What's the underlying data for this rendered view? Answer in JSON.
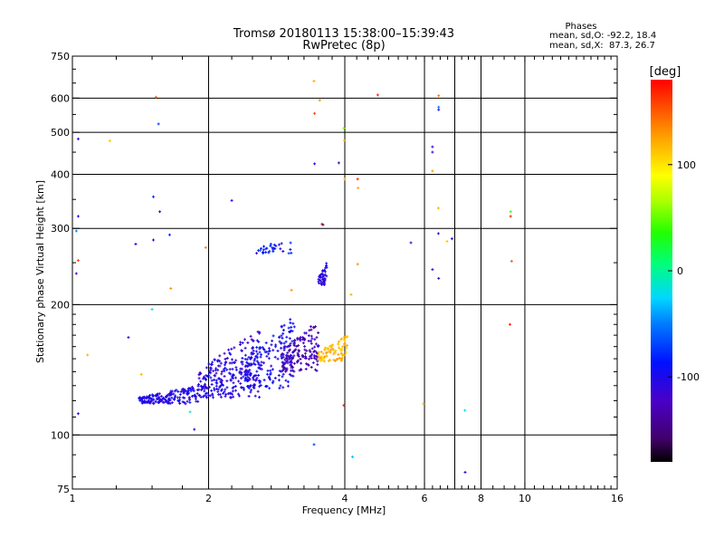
{
  "chart_data": {
    "type": "scatter",
    "title": "Tromsø 20180113 15:38:00–15:39:43",
    "subtitle": "RwPretec (8p)",
    "xlabel": "Frequency [MHz]",
    "ylabel": "Stationary phase Virtual Height [km]",
    "x_scale": "log2",
    "y_scale": "log",
    "xlim": [
      1,
      16
    ],
    "ylim": [
      75,
      750
    ],
    "x_ticks": [
      1,
      2,
      4,
      6,
      8,
      10,
      16
    ],
    "x_tick_labels": [
      "1",
      "2",
      "4",
      "6",
      "8",
      "10",
      "16"
    ],
    "x_gridlines": [
      2,
      4,
      6,
      7,
      8,
      10
    ],
    "y_ticks": [
      75,
      100,
      200,
      300,
      400,
      500,
      600,
      750
    ],
    "y_tick_labels": [
      "75",
      "100",
      "200",
      "300",
      "400",
      "500",
      "600",
      "750"
    ],
    "grid": true,
    "stats": {
      "heading": "Phases",
      "line_o": "mean, sd,O: -92.2, 18.4",
      "line_x": "mean, sd,X:  87.3, 26.7"
    },
    "colorbar": {
      "label": "[deg]",
      "range": [
        -180,
        180
      ],
      "ticks": [
        100,
        0,
        -100
      ],
      "tick_labels": [
        "100",
        "0",
        "-100"
      ],
      "colormap": "rainbow"
    },
    "clusters": [
      {
        "x_range": [
          1.4,
          1.9
        ],
        "y_range": [
          118,
          130
        ],
        "phase_range": [
          -120,
          -85
        ],
        "count": 170
      },
      {
        "x_range": [
          1.9,
          2.6
        ],
        "y_range": [
          122,
          175
        ],
        "phase_range": [
          -125,
          -85
        ],
        "count": 260
      },
      {
        "x_range": [
          2.4,
          3.1
        ],
        "y_range": [
          128,
          190
        ],
        "phase_range": [
          -115,
          -80
        ],
        "count": 160
      },
      {
        "x_range": [
          2.9,
          3.5
        ],
        "y_range": [
          140,
          185
        ],
        "phase_range": [
          -145,
          -110
        ],
        "count": 150
      },
      {
        "x_range": [
          3.5,
          4.05
        ],
        "y_range": [
          148,
          170
        ],
        "phase_range": [
          100,
          135
        ],
        "count": 80
      },
      {
        "x_range": [
          3.5,
          3.65
        ],
        "y_range": [
          222,
          250
        ],
        "phase_range": [
          -115,
          -95
        ],
        "count": 40
      },
      {
        "x_range": [
          2.55,
          3.05
        ],
        "y_range": [
          262,
          285
        ],
        "phase_range": [
          -110,
          -60
        ],
        "count": 30
      }
    ],
    "points": [
      {
        "x": 1.03,
        "y": 483,
        "phase": -100
      },
      {
        "x": 1.03,
        "y": 320,
        "phase": -100
      },
      {
        "x": 1.02,
        "y": 296,
        "phase": -50
      },
      {
        "x": 1.03,
        "y": 253,
        "phase": 160
      },
      {
        "x": 1.02,
        "y": 236,
        "phase": -120
      },
      {
        "x": 1.03,
        "y": 112,
        "phase": -110
      },
      {
        "x": 1.08,
        "y": 153,
        "phase": 120
      },
      {
        "x": 1.21,
        "y": 478,
        "phase": 110
      },
      {
        "x": 1.33,
        "y": 168,
        "phase": -100
      },
      {
        "x": 1.38,
        "y": 276,
        "phase": -110
      },
      {
        "x": 1.42,
        "y": 138,
        "phase": 120
      },
      {
        "x": 1.5,
        "y": 195,
        "phase": -20
      },
      {
        "x": 1.51,
        "y": 282,
        "phase": -100
      },
      {
        "x": 1.51,
        "y": 355,
        "phase": -80
      },
      {
        "x": 1.53,
        "y": 603,
        "phase": 150
      },
      {
        "x": 1.55,
        "y": 523,
        "phase": -70
      },
      {
        "x": 1.56,
        "y": 328,
        "phase": -110
      },
      {
        "x": 1.64,
        "y": 290,
        "phase": -80
      },
      {
        "x": 1.65,
        "y": 218,
        "phase": 130
      },
      {
        "x": 1.82,
        "y": 113,
        "phase": -10
      },
      {
        "x": 1.86,
        "y": 103,
        "phase": -110
      },
      {
        "x": 1.97,
        "y": 271,
        "phase": 140
      },
      {
        "x": 2.25,
        "y": 348,
        "phase": -100
      },
      {
        "x": 3.05,
        "y": 216,
        "phase": 130
      },
      {
        "x": 3.42,
        "y": 95,
        "phase": -70
      },
      {
        "x": 3.42,
        "y": 657,
        "phase": 120
      },
      {
        "x": 3.43,
        "y": 553,
        "phase": 160
      },
      {
        "x": 3.43,
        "y": 423,
        "phase": -100
      },
      {
        "x": 3.56,
        "y": 307,
        "phase": 160
      },
      {
        "x": 3.58,
        "y": 306,
        "phase": -150
      },
      {
        "x": 3.52,
        "y": 593,
        "phase": 130
      },
      {
        "x": 3.88,
        "y": 425,
        "phase": -120
      },
      {
        "x": 3.98,
        "y": 511,
        "phase": 60
      },
      {
        "x": 3.99,
        "y": 479,
        "phase": 120
      },
      {
        "x": 4.0,
        "y": 390,
        "phase": 130
      },
      {
        "x": 3.98,
        "y": 117,
        "phase": 170
      },
      {
        "x": 4.13,
        "y": 211,
        "phase": 120
      },
      {
        "x": 4.27,
        "y": 390,
        "phase": 170
      },
      {
        "x": 4.28,
        "y": 372,
        "phase": 120
      },
      {
        "x": 4.27,
        "y": 248,
        "phase": 130
      },
      {
        "x": 4.16,
        "y": 89,
        "phase": -30
      },
      {
        "x": 4.73,
        "y": 610,
        "phase": 170
      },
      {
        "x": 5.6,
        "y": 278,
        "phase": -120
      },
      {
        "x": 5.96,
        "y": 118,
        "phase": 110
      },
      {
        "x": 6.25,
        "y": 463,
        "phase": -110
      },
      {
        "x": 6.25,
        "y": 450,
        "phase": -120
      },
      {
        "x": 6.25,
        "y": 407,
        "phase": 130
      },
      {
        "x": 6.25,
        "y": 241,
        "phase": -110
      },
      {
        "x": 6.45,
        "y": 608,
        "phase": 140
      },
      {
        "x": 6.45,
        "y": 572,
        "phase": -50
      },
      {
        "x": 6.45,
        "y": 564,
        "phase": -110
      },
      {
        "x": 6.44,
        "y": 334,
        "phase": 120
      },
      {
        "x": 6.44,
        "y": 292,
        "phase": -110
      },
      {
        "x": 6.45,
        "y": 230,
        "phase": -110
      },
      {
        "x": 6.73,
        "y": 280,
        "phase": 110
      },
      {
        "x": 6.9,
        "y": 284,
        "phase": -110
      },
      {
        "x": 7.37,
        "y": 114,
        "phase": -20
      },
      {
        "x": 7.38,
        "y": 82,
        "phase": -110
      },
      {
        "x": 9.3,
        "y": 328,
        "phase": 40
      },
      {
        "x": 9.3,
        "y": 320,
        "phase": 170
      },
      {
        "x": 9.35,
        "y": 252,
        "phase": 150
      },
      {
        "x": 9.27,
        "y": 180,
        "phase": 170
      }
    ]
  }
}
